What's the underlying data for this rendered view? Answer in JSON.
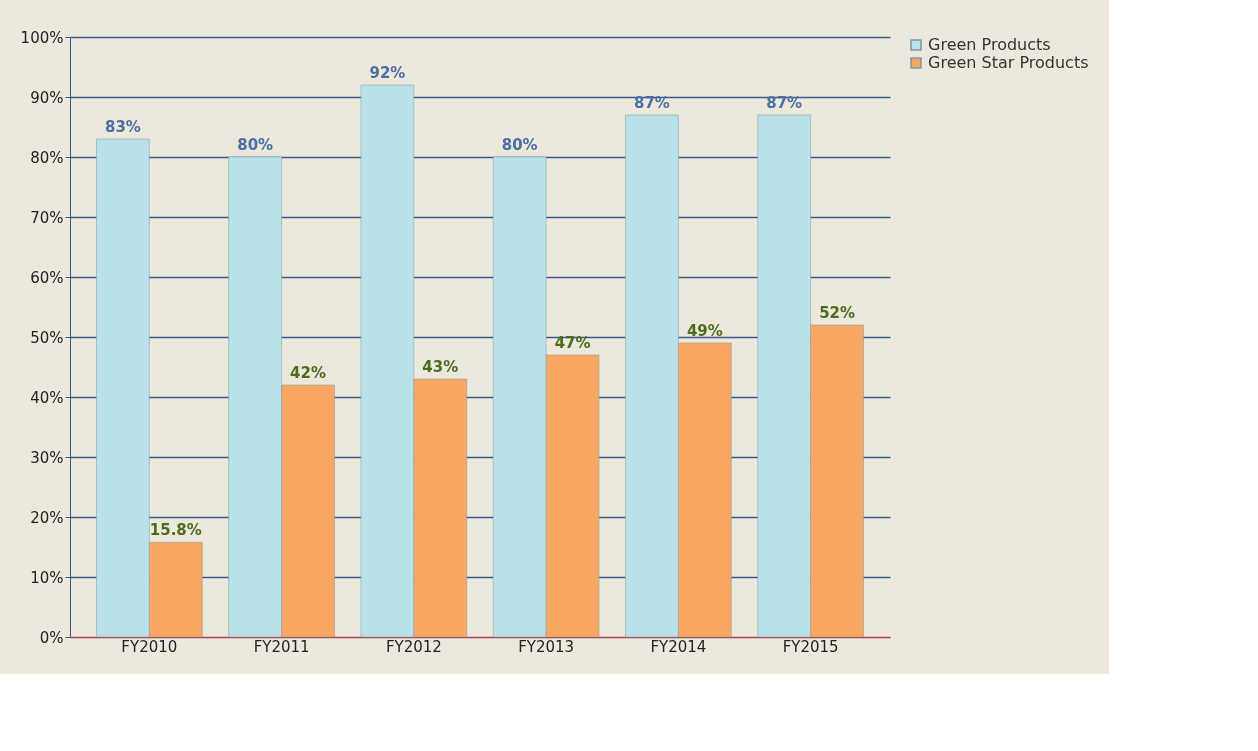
{
  "chart_data": {
    "type": "bar",
    "categories": [
      "FY2010",
      "FY2011",
      "FY2012",
      "FY2013",
      "FY2014",
      "FY2015"
    ],
    "series": [
      {
        "name": "Green Products",
        "color": "#b9e1ea",
        "values": [
          83,
          80,
          92,
          80,
          87,
          87
        ],
        "value_labels": [
          "83%",
          "80%",
          "92%",
          "80%",
          "87%",
          "87%"
        ]
      },
      {
        "name": "Green Star Products",
        "color": "#f8a862",
        "values": [
          15.8,
          42,
          43,
          47,
          49,
          52
        ],
        "value_labels": [
          "15.8%",
          "42%",
          "43%",
          "47%",
          "49%",
          "52%"
        ]
      }
    ],
    "ylim": [
      0,
      100
    ],
    "yticks": [
      {
        "value": 0,
        "label": "0%"
      },
      {
        "value": 10,
        "label": "10%"
      },
      {
        "value": 20,
        "label": "20%"
      },
      {
        "value": 30,
        "label": "30%"
      },
      {
        "value": 40,
        "label": "40%"
      },
      {
        "value": 50,
        "label": "50%"
      },
      {
        "value": 60,
        "label": "60%"
      },
      {
        "value": 70,
        "label": "70%"
      },
      {
        "value": 80,
        "label": "80%"
      },
      {
        "value": 90,
        "label": "90%"
      },
      {
        "value": 100,
        "label": "100%"
      }
    ],
    "grid": "y",
    "legend": "top right"
  }
}
